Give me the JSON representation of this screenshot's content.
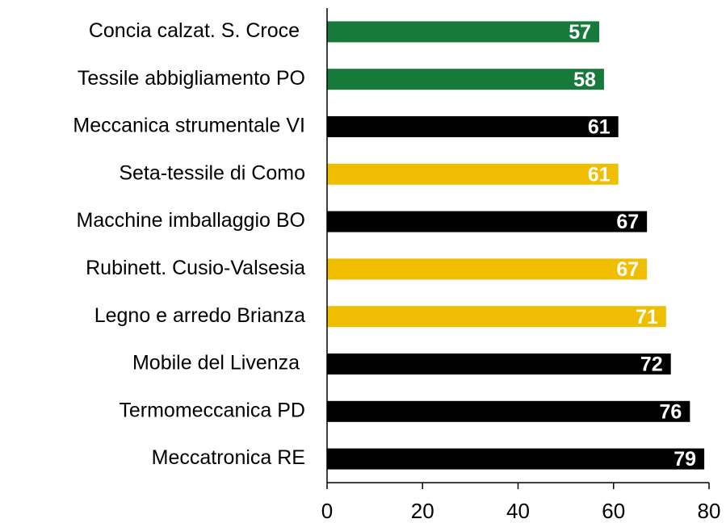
{
  "chart_data": {
    "type": "hbar",
    "categories": [
      "Concia calzat. S. Croce ",
      "Tessile abbigliamento PO",
      "Meccanica strumentale VI",
      "Seta-tessile di Como",
      "Macchine imballaggio BO",
      "Rubinett. Cusio-Valsesia",
      "Legno e arredo Brianza",
      "Mobile del Livenza ",
      "Termomeccanica PD",
      "Meccatronica RE"
    ],
    "values": [
      57,
      58,
      61,
      61,
      67,
      67,
      71,
      72,
      76,
      79
    ],
    "colors": [
      "#17793a",
      "#17793a",
      "#000000",
      "#efbe00",
      "#000000",
      "#efbe00",
      "#efbe00",
      "#000000",
      "#000000",
      "#000000"
    ],
    "xlim": [
      0,
      80
    ],
    "xticks": [
      0,
      20,
      40,
      60,
      80
    ]
  }
}
